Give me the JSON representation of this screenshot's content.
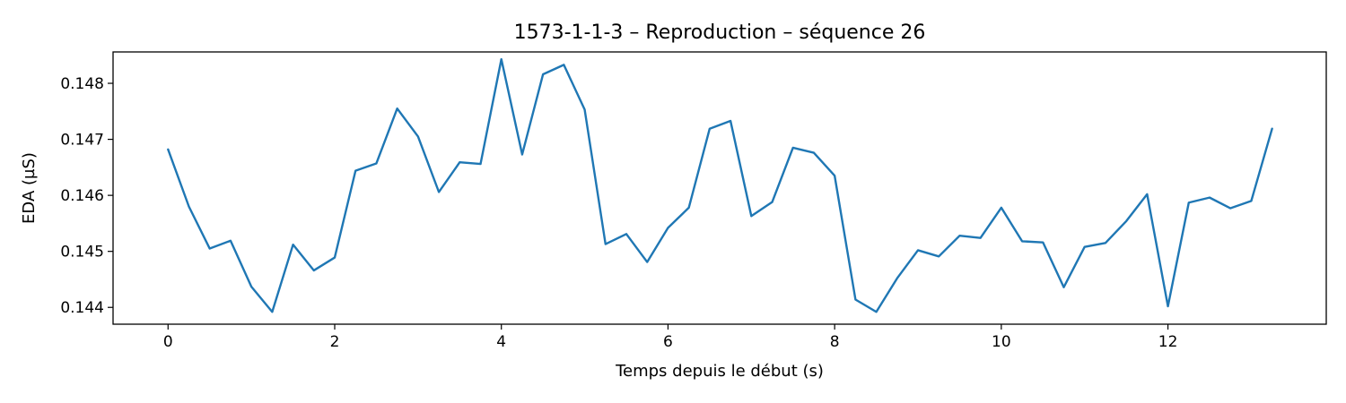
{
  "chart_data": {
    "type": "line",
    "title": "1573-1-1-3 – Reproduction – séquence 26",
    "xlabel": "Temps depuis le début (s)",
    "ylabel": "EDA (µS)",
    "xlim": [
      -0.66,
      13.9
    ],
    "ylim": [
      0.1437,
      0.14856
    ],
    "xticks": [
      0,
      2,
      4,
      6,
      8,
      10,
      12
    ],
    "xtick_labels": [
      "0",
      "2",
      "4",
      "6",
      "8",
      "10",
      "12"
    ],
    "yticks": [
      0.144,
      0.145,
      0.146,
      0.147,
      0.148
    ],
    "ytick_labels": [
      "0.144",
      "0.145",
      "0.146",
      "0.147",
      "0.148"
    ],
    "grid": false,
    "series": [
      {
        "color": "#1f77b4",
        "x": [
          0,
          0.25,
          0.5,
          0.75,
          1,
          1.25,
          1.5,
          1.75,
          2,
          2.25,
          2.5,
          2.75,
          3,
          3.25,
          3.5,
          3.75,
          4,
          4.25,
          4.5,
          4.75,
          5,
          5.25,
          5.5,
          5.75,
          6,
          6.25,
          6.5,
          6.75,
          7,
          7.25,
          7.5,
          7.75,
          8,
          8.25,
          8.5,
          8.75,
          9,
          9.25,
          9.5,
          9.75,
          10,
          10.25,
          10.5,
          10.75,
          11,
          11.25,
          11.5,
          11.75,
          12,
          12.25,
          12.5,
          12.75,
          13,
          13.25
        ],
        "y": [
          0.14682,
          0.1458,
          0.14505,
          0.14519,
          0.14437,
          0.14392,
          0.14512,
          0.14466,
          0.14489,
          0.14644,
          0.14657,
          0.14755,
          0.14705,
          0.14606,
          0.14659,
          0.14656,
          0.14843,
          0.14673,
          0.14816,
          0.14833,
          0.14753,
          0.14513,
          0.14531,
          0.14481,
          0.14542,
          0.14578,
          0.14719,
          0.14733,
          0.14563,
          0.14588,
          0.14685,
          0.14676,
          0.14635,
          0.14414,
          0.14392,
          0.14452,
          0.14502,
          0.14491,
          0.14528,
          0.14524,
          0.14578,
          0.14518,
          0.14516,
          0.14436,
          0.14508,
          0.14515,
          0.14554,
          0.14602,
          0.14402,
          0.14587,
          0.14596,
          0.14577,
          0.1459,
          0.14719
        ]
      }
    ]
  }
}
